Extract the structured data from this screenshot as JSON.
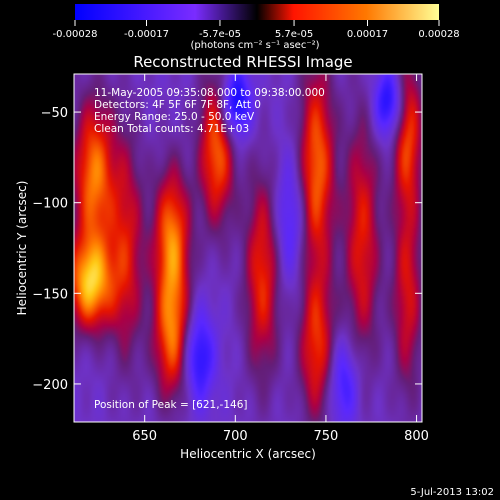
{
  "chart_data": {
    "type": "heatmap",
    "title": "Reconstructed RHESSI Image",
    "xlabel": "Heliocentric X (arcsec)",
    "ylabel": "Heliocentric Y (arcsec)",
    "xlim": [
      611,
      803
    ],
    "ylim": [
      -221,
      -29
    ],
    "x_ticks": [
      650,
      700,
      750,
      800
    ],
    "y_ticks": [
      -50,
      -100,
      -150,
      -200
    ],
    "colorbar": {
      "range": [
        -0.00028,
        0.00028
      ],
      "tick_values": [
        -0.00028,
        -0.00017,
        -5.7e-05,
        5.7e-05,
        0.00017,
        0.00028
      ],
      "tick_labels": [
        "-0.00028",
        "-0.00017",
        "-5.7e-05",
        "5.7e-05",
        "0.00017",
        "0.00028"
      ],
      "unit_label": "(photons cm⁻² s⁻¹ asec⁻²)",
      "colors": [
        "#0000ff",
        "#7a2cff",
        "#ff00ff",
        "#ff1400",
        "#ff7800",
        "#ffff96"
      ]
    },
    "annotations": {
      "time": "11-May-2005 09:35:08.000 to 09:38:00.000",
      "detectors": "Detectors: 4F 5F 6F 7F 8F, Att 0",
      "energy": "Energy Range: 25.0 - 50.0 keV",
      "clean": "Clean    Total counts: 4.71E+03",
      "peak": "Position of Peak = [621,-146]"
    },
    "peak_position": [
      621,
      -146
    ],
    "ridges": [
      {
        "x": 622,
        "y": -85,
        "intensity": 0.85,
        "sx": 8,
        "sy": 30
      },
      {
        "x": 620,
        "y": -145,
        "intensity": 1.0,
        "sx": 9,
        "sy": 18
      },
      {
        "x": 640,
        "y": -125,
        "intensity": 0.55,
        "sx": 7,
        "sy": 45
      },
      {
        "x": 665,
        "y": -120,
        "intensity": 0.85,
        "sx": 7,
        "sy": 28
      },
      {
        "x": 665,
        "y": -175,
        "intensity": 0.75,
        "sx": 7,
        "sy": 25
      },
      {
        "x": 690,
        "y": -70,
        "intensity": 0.8,
        "sx": 7,
        "sy": 30
      },
      {
        "x": 715,
        "y": -140,
        "intensity": 0.65,
        "sx": 7,
        "sy": 40
      },
      {
        "x": 745,
        "y": -80,
        "intensity": 0.8,
        "sx": 7,
        "sy": 40
      },
      {
        "x": 745,
        "y": -180,
        "intensity": 0.65,
        "sx": 7,
        "sy": 30
      },
      {
        "x": 770,
        "y": -120,
        "intensity": 0.6,
        "sx": 7,
        "sy": 50
      },
      {
        "x": 795,
        "y": -60,
        "intensity": 0.7,
        "sx": 6,
        "sy": 30
      },
      {
        "x": 795,
        "y": -150,
        "intensity": 0.55,
        "sx": 6,
        "sy": 40
      }
    ],
    "troughs": [
      {
        "x": 700,
        "y": -45,
        "intensity": -0.8,
        "sx": 6,
        "sy": 14
      },
      {
        "x": 785,
        "y": -45,
        "intensity": -0.7,
        "sx": 6,
        "sy": 14
      },
      {
        "x": 730,
        "y": -110,
        "intensity": -0.4,
        "sx": 6,
        "sy": 25
      },
      {
        "x": 680,
        "y": -185,
        "intensity": -0.6,
        "sx": 6,
        "sy": 18
      },
      {
        "x": 760,
        "y": -200,
        "intensity": -0.5,
        "sx": 6,
        "sy": 18
      }
    ]
  },
  "footer": {
    "date": "5-Jul-2013 13:02"
  }
}
